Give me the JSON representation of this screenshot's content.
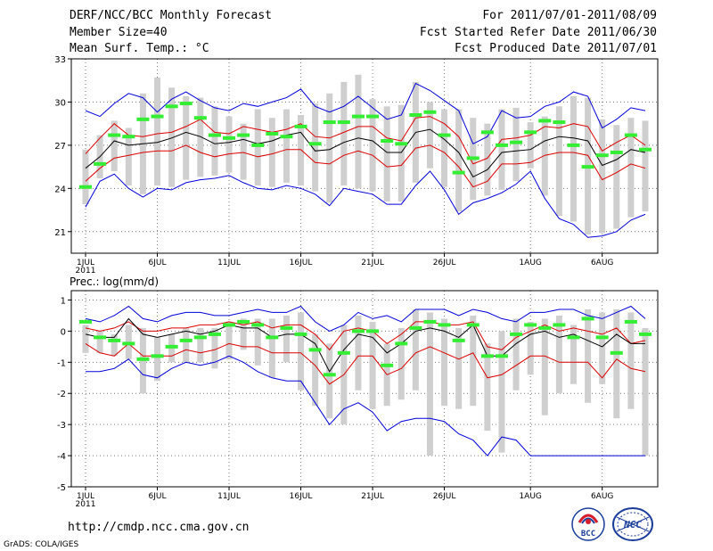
{
  "header": {
    "title": "DERF/NCC/BCC Monthly Forecast",
    "member_size": "Member Size=40",
    "variable": "Mean Surf. Temp.: °C",
    "period": "For 2011/07/01-2011/08/09",
    "started": "Fcst Started Refer Date 2011/06/30",
    "produced": "Fcst Produced Date 2011/07/01"
  },
  "footer": {
    "url": "http://cmdp.ncc.cma.gov.cn",
    "grads": "GrADS: COLA/IGES",
    "logo_bcc_text": "BCC",
    "logo_ncc_text": "NCC"
  },
  "colors": {
    "max_min": "#0000dd",
    "spread": "#dd0000",
    "mean": "#000000",
    "member_box": "#cfcfcf",
    "member_mean": "#33ee33",
    "grid": "#777777"
  },
  "chart_data": [
    {
      "type": "line",
      "title": "Mean Surf. Temp.: °C",
      "days": 40,
      "x_tick_labels": [
        {
          "day": 1,
          "label": "1JUL"
        },
        {
          "day": 6,
          "label": "6JUL"
        },
        {
          "day": 11,
          "label": "11JUL"
        },
        {
          "day": 16,
          "label": "16JUL"
        },
        {
          "day": 21,
          "label": "21JUL"
        },
        {
          "day": 26,
          "label": "26JUL"
        },
        {
          "day": 32,
          "label": "1AUG"
        },
        {
          "day": 37,
          "label": "6AUG"
        }
      ],
      "year_label": "2011",
      "ylim": [
        19.5,
        33
      ],
      "yticks": [
        21,
        24,
        27,
        30,
        33
      ],
      "series": [
        {
          "name": "max",
          "values": [
            29.4,
            29.0,
            29.9,
            30.6,
            30.3,
            29.3,
            30.2,
            30.7,
            30.1,
            29.6,
            29.4,
            29.9,
            29.7,
            30.0,
            30.3,
            30.9,
            29.7,
            29.3,
            29.7,
            30.4,
            29.6,
            28.8,
            29.1,
            31.3,
            30.8,
            30.1,
            29.4,
            27.1,
            27.6,
            29.4,
            28.9,
            29.0,
            29.7,
            30.0,
            30.7,
            30.4,
            28.2,
            28.8,
            29.6,
            29.4
          ]
        },
        {
          "name": "upper",
          "values": [
            26.4,
            27.5,
            28.5,
            27.7,
            27.6,
            27.8,
            27.9,
            28.3,
            28.8,
            27.9,
            27.8,
            28.3,
            28.1,
            27.9,
            28.1,
            28.5,
            27.6,
            27.5,
            27.9,
            28.3,
            28.3,
            27.5,
            27.3,
            28.9,
            29.0,
            28.5,
            27.6,
            25.7,
            26.1,
            27.4,
            27.5,
            27.7,
            28.3,
            28.2,
            28.5,
            28.3,
            26.6,
            27.2,
            27.7,
            27.0
          ]
        },
        {
          "name": "mean",
          "values": [
            25.4,
            26.2,
            27.3,
            27.0,
            27.1,
            27.2,
            27.5,
            27.9,
            27.6,
            27.1,
            27.2,
            27.4,
            27.1,
            27.3,
            27.7,
            27.9,
            26.6,
            26.7,
            27.2,
            27.5,
            27.3,
            26.5,
            26.5,
            27.9,
            28.1,
            27.4,
            26.5,
            24.8,
            25.3,
            26.5,
            26.6,
            26.7,
            27.3,
            27.6,
            27.5,
            27.3,
            25.6,
            26.0,
            26.7,
            26.5
          ]
        },
        {
          "name": "lower",
          "values": [
            24.5,
            25.4,
            26.1,
            26.3,
            26.5,
            26.6,
            26.6,
            27.0,
            26.5,
            26.2,
            26.4,
            26.5,
            26.2,
            26.4,
            26.7,
            26.7,
            25.8,
            25.7,
            26.3,
            26.6,
            26.3,
            25.5,
            25.6,
            26.8,
            27.0,
            26.5,
            25.5,
            24.1,
            24.5,
            25.7,
            25.7,
            25.8,
            26.3,
            26.5,
            26.5,
            26.3,
            24.6,
            25.1,
            25.7,
            25.4
          ]
        },
        {
          "name": "min",
          "values": [
            22.7,
            24.5,
            25.0,
            24.0,
            23.4,
            24.0,
            23.9,
            24.4,
            24.6,
            24.7,
            24.9,
            24.4,
            24.0,
            23.9,
            24.2,
            24.0,
            23.6,
            22.8,
            24.0,
            23.8,
            23.6,
            22.9,
            22.9,
            24.2,
            25.2,
            23.9,
            22.2,
            23.0,
            23.3,
            23.7,
            24.3,
            25.2,
            23.3,
            21.9,
            21.5,
            20.6,
            20.7,
            21.0,
            21.8,
            22.2
          ]
        }
      ],
      "member_mean": [
        24.1,
        25.7,
        27.7,
        27.6,
        28.8,
        29.0,
        29.7,
        29.9,
        28.9,
        27.7,
        27.5,
        27.7,
        27.0,
        27.8,
        27.6,
        28.3,
        27.1,
        28.6,
        28.6,
        29.0,
        29.0,
        27.3,
        27.1,
        29.1,
        29.3,
        27.7,
        25.1,
        26.1,
        27.9,
        27.0,
        27.2,
        27.9,
        28.7,
        28.6,
        27.0,
        25.5,
        26.3,
        26.5,
        27.7,
        26.7
      ],
      "box_top": [
        26.7,
        27.7,
        28.7,
        28.2,
        30.6,
        31.7,
        31.0,
        30.4,
        30.3,
        29.7,
        29.0,
        28.5,
        29.5,
        28.9,
        29.5,
        29.1,
        29.9,
        30.6,
        31.4,
        31.9,
        30.2,
        29.7,
        29.8,
        31.4,
        30.0,
        29.5,
        29.5,
        28.9,
        28.5,
        29.5,
        29.6,
        28.6,
        29.0,
        29.7,
        30.4,
        30.3,
        28.8,
        28.4,
        28.9,
        28.7
      ]
    },
    {
      "type": "line",
      "title": "Prec.: log(mm/d)",
      "days": 40,
      "x_tick_labels": [
        {
          "day": 1,
          "label": "1JUL"
        },
        {
          "day": 6,
          "label": "6JUL"
        },
        {
          "day": 11,
          "label": "11JUL"
        },
        {
          "day": 16,
          "label": "16JUL"
        },
        {
          "day": 21,
          "label": "21JUL"
        },
        {
          "day": 26,
          "label": "26JUL"
        },
        {
          "day": 32,
          "label": "1AUG"
        },
        {
          "day": 37,
          "label": "6AUG"
        }
      ],
      "year_label": "2011",
      "ylim": [
        -5,
        1.3
      ],
      "yticks": [
        -5,
        -4,
        -3,
        -2,
        -1,
        0,
        1
      ],
      "series": [
        {
          "name": "max",
          "values": [
            0.4,
            0.3,
            0.5,
            0.8,
            0.4,
            0.3,
            0.5,
            0.6,
            0.6,
            0.5,
            0.5,
            0.6,
            0.7,
            0.6,
            0.6,
            0.8,
            0.3,
            0.0,
            0.2,
            0.6,
            0.4,
            0.5,
            0.3,
            0.7,
            0.7,
            0.7,
            0.5,
            0.7,
            0.6,
            0.4,
            0.3,
            0.6,
            0.6,
            0.7,
            0.7,
            0.5,
            0.4,
            0.6,
            0.8,
            0.4
          ]
        },
        {
          "name": "upper",
          "values": [
            0.1,
            0.0,
            0.1,
            0.3,
            0.0,
            0.0,
            0.1,
            0.1,
            0.2,
            0.2,
            0.3,
            0.2,
            0.3,
            0.1,
            0.2,
            0.2,
            -0.1,
            -0.6,
            0.0,
            0.1,
            0.0,
            -0.4,
            -0.1,
            0.3,
            0.3,
            0.2,
            0.2,
            0.3,
            -0.5,
            -0.6,
            -0.2,
            0.0,
            0.2,
            0.0,
            0.1,
            0.0,
            -0.1,
            0.1,
            -0.4,
            -0.3
          ]
        },
        {
          "name": "mean",
          "values": [
            -0.1,
            -0.2,
            -0.2,
            0.4,
            -0.1,
            -0.2,
            -0.1,
            0.0,
            -0.1,
            0.0,
            0.2,
            0.1,
            0.1,
            -0.2,
            -0.1,
            -0.1,
            -0.4,
            -1.3,
            -0.6,
            -0.1,
            -0.2,
            -0.7,
            -0.4,
            0.0,
            0.1,
            0.0,
            -0.2,
            0.2,
            -0.8,
            -0.8,
            -0.4,
            -0.1,
            0.0,
            -0.2,
            -0.1,
            -0.3,
            -0.5,
            -0.1,
            -0.4,
            -0.4
          ]
        },
        {
          "name": "lower",
          "values": [
            -0.4,
            -0.7,
            -0.8,
            -0.4,
            -0.8,
            -0.8,
            -0.8,
            -0.6,
            -0.7,
            -0.6,
            -0.4,
            -0.5,
            -0.5,
            -0.7,
            -0.7,
            -0.7,
            -1.1,
            -1.7,
            -1.4,
            -0.8,
            -0.8,
            -1.4,
            -1.2,
            -0.7,
            -0.5,
            -0.7,
            -0.9,
            -0.7,
            -1.5,
            -1.4,
            -1.1,
            -0.8,
            -0.8,
            -1.0,
            -1.0,
            -1.0,
            -1.5,
            -0.9,
            -1.2,
            -1.3
          ]
        },
        {
          "name": "min",
          "values": [
            -1.3,
            -1.3,
            -1.2,
            -0.9,
            -1.4,
            -1.5,
            -1.2,
            -1.0,
            -1.1,
            -1.0,
            -0.8,
            -1.0,
            -1.3,
            -1.5,
            -1.6,
            -1.6,
            -2.3,
            -3.0,
            -2.5,
            -2.3,
            -2.6,
            -3.2,
            -2.9,
            -2.8,
            -2.8,
            -2.9,
            -3.3,
            -3.5,
            -4.0,
            -3.4,
            -3.5,
            -4.0,
            -4.0,
            -4.0,
            -4.0,
            -4.0,
            -4.0,
            -4.0,
            -4.0,
            -4.0
          ]
        }
      ],
      "member_mean": [
        0.3,
        -0.2,
        -0.3,
        -0.4,
        -0.9,
        -0.8,
        -0.5,
        -0.3,
        -0.2,
        -0.1,
        0.2,
        0.3,
        0.2,
        -0.2,
        0.1,
        -0.1,
        -0.6,
        -1.4,
        -0.7,
        0.0,
        0.0,
        -1.1,
        -0.4,
        0.1,
        0.3,
        0.2,
        -0.3,
        0.2,
        -0.8,
        -0.8,
        -0.1,
        0.2,
        0.1,
        0.2,
        -0.2,
        0.4,
        -0.2,
        -0.7,
        0.3,
        -0.1
      ],
      "box_bottom": [
        -0.7,
        -0.7,
        -0.8,
        -0.9,
        -2.0,
        -1.6,
        -1.0,
        -1.0,
        -1.0,
        -1.2,
        -0.9,
        -0.6,
        -1.1,
        -1.5,
        -1.0,
        -1.9,
        -2.4,
        -2.8,
        -3.0,
        -1.9,
        -2.5,
        -2.4,
        -2.2,
        -1.9,
        -4.0,
        -2.4,
        -2.5,
        -2.4,
        -3.2,
        -3.9,
        -1.9,
        -1.4,
        -2.7,
        -2.0,
        -1.7,
        -2.3,
        -1.7,
        -2.8,
        -2.5,
        -4.0
      ],
      "box_top": [
        0.2,
        0.0,
        -0.1,
        0.2,
        0.1,
        -0.2,
        -0.1,
        0.1,
        0.1,
        0.1,
        0.3,
        0.4,
        0.4,
        0.4,
        0.5,
        0.6,
        -0.1,
        -0.4,
        0.2,
        0.5,
        0.3,
        -0.4,
        0.1,
        0.7,
        0.6,
        0.4,
        0.1,
        0.5,
        -0.4,
        0.0,
        0.4,
        0.3,
        0.4,
        0.5,
        0.2,
        0.7,
        0.6,
        0.7,
        0.6,
        0.1
      ]
    }
  ]
}
